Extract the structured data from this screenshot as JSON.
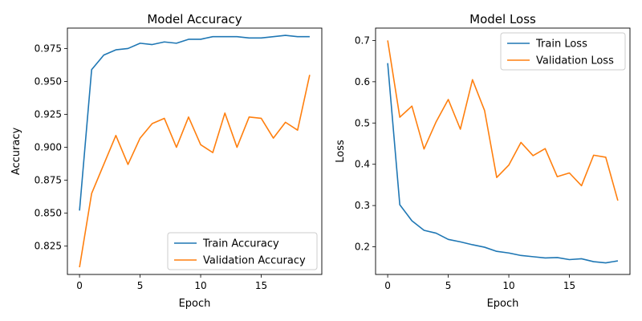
{
  "chart_data": [
    {
      "type": "line",
      "title": "Model Accuracy",
      "xlabel": "Epoch",
      "ylabel": "Accuracy",
      "xlim": [
        -1.0,
        20.0
      ],
      "ylim": [
        0.8035,
        0.9905
      ],
      "xticks": [
        0,
        5,
        10,
        15
      ],
      "xtick_labels": [
        "0",
        "5",
        "10",
        "15"
      ],
      "yticks": [
        0.825,
        0.85,
        0.875,
        0.9,
        0.925,
        0.95,
        0.975
      ],
      "ytick_labels": [
        "0.825",
        "0.850",
        "0.875",
        "0.900",
        "0.925",
        "0.950",
        "0.975"
      ],
      "legend_position": "lower-right",
      "grid": false,
      "x": [
        0,
        1,
        2,
        3,
        4,
        5,
        6,
        7,
        8,
        9,
        10,
        11,
        12,
        13,
        14,
        15,
        16,
        17,
        18,
        19
      ],
      "series": [
        {
          "name": "Train Accuracy",
          "color": "#1f77b4",
          "values": [
            0.852,
            0.959,
            0.97,
            0.974,
            0.975,
            0.979,
            0.978,
            0.98,
            0.979,
            0.982,
            0.982,
            0.984,
            0.984,
            0.984,
            0.983,
            0.983,
            0.984,
            0.985,
            0.984,
            0.984
          ]
        },
        {
          "name": "Validation Accuracy",
          "color": "#ff7f0e",
          "values": [
            0.809,
            0.865,
            0.887,
            0.909,
            0.887,
            0.907,
            0.918,
            0.922,
            0.9,
            0.923,
            0.902,
            0.896,
            0.926,
            0.9,
            0.923,
            0.922,
            0.907,
            0.919,
            0.913,
            0.955
          ]
        }
      ]
    },
    {
      "type": "line",
      "title": "Model Loss",
      "xlabel": "Epoch",
      "ylabel": "Loss",
      "xlim": [
        -1.0,
        20.0
      ],
      "ylim": [
        0.133,
        0.73
      ],
      "xticks": [
        0,
        5,
        10,
        15
      ],
      "xtick_labels": [
        "0",
        "5",
        "10",
        "15"
      ],
      "yticks": [
        0.2,
        0.3,
        0.4,
        0.5,
        0.6,
        0.7
      ],
      "ytick_labels": [
        "0.2",
        "0.3",
        "0.4",
        "0.5",
        "0.6",
        "0.7"
      ],
      "legend_position": "top-right",
      "grid": false,
      "x": [
        0,
        1,
        2,
        3,
        4,
        5,
        6,
        7,
        8,
        9,
        10,
        11,
        12,
        13,
        14,
        15,
        16,
        17,
        18,
        19
      ],
      "series": [
        {
          "name": "Train Loss",
          "color": "#1f77b4",
          "values": [
            0.645,
            0.302,
            0.263,
            0.24,
            0.233,
            0.218,
            0.212,
            0.205,
            0.199,
            0.189,
            0.185,
            0.179,
            0.176,
            0.173,
            0.174,
            0.169,
            0.171,
            0.164,
            0.161,
            0.166
          ]
        },
        {
          "name": "Validation Loss",
          "color": "#ff7f0e",
          "values": [
            0.7,
            0.514,
            0.541,
            0.437,
            0.503,
            0.557,
            0.485,
            0.605,
            0.53,
            0.368,
            0.398,
            0.453,
            0.421,
            0.438,
            0.37,
            0.379,
            0.348,
            0.422,
            0.417,
            0.312
          ]
        }
      ]
    }
  ]
}
